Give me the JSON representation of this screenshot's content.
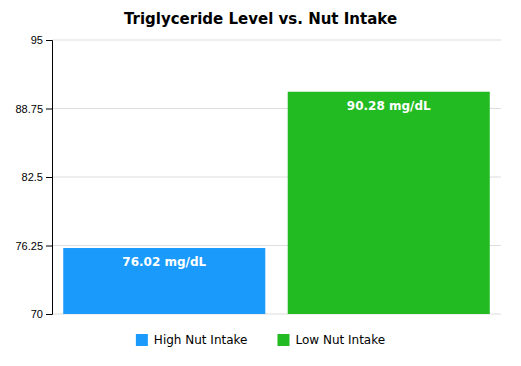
{
  "chart_data": {
    "type": "bar",
    "title": "Triglyceride Level vs. Nut Intake",
    "categories": [
      "High Nut Intake",
      "Low Nut Intake"
    ],
    "values": [
      76.02,
      90.28
    ],
    "value_labels": [
      "76.02 mg/dL",
      "90.28 mg/dL"
    ],
    "colors": [
      "#1a9bfc",
      "#22bb22"
    ],
    "ylim": [
      70,
      95
    ],
    "yticks": [
      70,
      76.25,
      82.5,
      88.75,
      95
    ],
    "grid": true,
    "data_labels": true,
    "tick_labels": "y",
    "legend": "bottom"
  }
}
